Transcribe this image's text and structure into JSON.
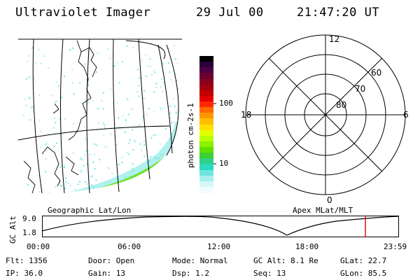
{
  "header": {
    "instrument": "Ultraviolet Imager",
    "date": "29 Jul 00",
    "time": "21:47:20 UT"
  },
  "map_panel": {
    "caption": "Geographic Lat/Lon"
  },
  "colorbar": {
    "unit_label": "photon cm-2s-1",
    "tick_labels": [
      "100",
      "10"
    ],
    "colors": [
      "#000000",
      "#2a003a",
      "#4b0043",
      "#6b0030",
      "#8a001c",
      "#a3000d",
      "#c20000",
      "#e30000",
      "#ff2a00",
      "#ff6a00",
      "#ff9500",
      "#ffbe00",
      "#ffe000",
      "#e6ff00",
      "#b8ff00",
      "#8cf000",
      "#5fe000",
      "#3ed030",
      "#2fd088",
      "#2ed8c0",
      "#6fe5e0",
      "#a8efee",
      "#d8f7f7",
      "#f4fbfb"
    ]
  },
  "polar_panel": {
    "caption": "Apex MLat/MLT",
    "mlt_labels": {
      "top": "12",
      "left": "18",
      "right": "6",
      "bottom": "0"
    },
    "lat_labels": [
      "60",
      "70",
      "80"
    ]
  },
  "orbit_plot": {
    "y_axis_label": "GC Alt",
    "y_ticks": [
      "9.0",
      "1.8"
    ],
    "x_ticks": [
      "00:00",
      "06:00",
      "12:00",
      "18:00",
      "23:59"
    ],
    "marker_color": "#dd0000"
  },
  "status": {
    "flt": "Flt: 1356",
    "ip": "IP: 36.0",
    "door": "Door: Open",
    "gain": "Gain: 13",
    "mode": "Mode: Normal",
    "dsp": "Dsp:    1.2",
    "gc_alt": "GC Alt: 8.1 Re",
    "seq": "Seq: 13",
    "glat": "GLat:  22.7",
    "glon": "GLon:  85.5"
  }
}
